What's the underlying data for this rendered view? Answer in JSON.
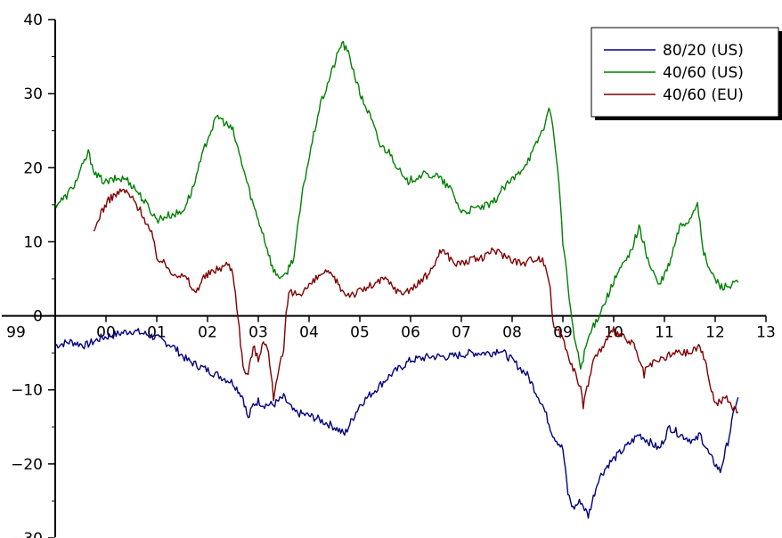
{
  "chart_data": {
    "type": "line",
    "title": "",
    "xlabel": "",
    "ylabel": "",
    "xlim": [
      1999,
      2013
    ],
    "ylim": [
      -30,
      40
    ],
    "grid": false,
    "legend_position": "top-right",
    "x_ticks": [
      {
        "x": 1999,
        "label": "99"
      },
      {
        "x": 2000,
        "label": "00"
      },
      {
        "x": 2001,
        "label": "01"
      },
      {
        "x": 2002,
        "label": "02"
      },
      {
        "x": 2003,
        "label": "03"
      },
      {
        "x": 2004,
        "label": "04"
      },
      {
        "x": 2005,
        "label": "05"
      },
      {
        "x": 2006,
        "label": "06"
      },
      {
        "x": 2007,
        "label": "07"
      },
      {
        "x": 2008,
        "label": "08"
      },
      {
        "x": 2009,
        "label": "09"
      },
      {
        "x": 2010,
        "label": "10"
      },
      {
        "x": 2011,
        "label": "11"
      },
      {
        "x": 2012,
        "label": "12"
      },
      {
        "x": 2013,
        "label": "13"
      }
    ],
    "y_ticks": [
      {
        "y": 40,
        "label": "40"
      },
      {
        "y": 30,
        "label": "30"
      },
      {
        "y": 20,
        "label": "20"
      },
      {
        "y": 10,
        "label": "10"
      },
      {
        "y": 0,
        "label": "0"
      },
      {
        "y": -10,
        "label": "−10"
      },
      {
        "y": -20,
        "label": "−20"
      },
      {
        "y": -30,
        "label": "−30"
      }
    ],
    "series": [
      {
        "name": "80/20 (US)",
        "color": "#000080",
        "x": [
          1999.0,
          1999.3,
          1999.6,
          1999.9,
          2000.2,
          2000.5,
          2000.8,
          2001.0,
          2001.3,
          2001.6,
          2001.9,
          2002.2,
          2002.5,
          2002.7,
          2002.8,
          2002.9,
          2003.0,
          2003.1,
          2003.3,
          2003.5,
          2003.7,
          2004.0,
          2004.2,
          2004.5,
          2004.7,
          2004.85,
          2005.0,
          2005.3,
          2005.6,
          2006.0,
          2006.4,
          2006.8,
          2007.2,
          2007.6,
          2007.75,
          2008.0,
          2008.3,
          2008.6,
          2008.8,
          2009.0,
          2009.1,
          2009.2,
          2009.35,
          2009.5,
          2009.7,
          2009.9,
          2010.2,
          2010.5,
          2010.7,
          2010.9,
          2011.1,
          2011.3,
          2011.6,
          2011.7,
          2011.9,
          2012.1,
          2012.25,
          2012.4,
          2012.45
        ],
        "values": [
          -4,
          -3.5,
          -4,
          -3,
          -2.5,
          -2,
          -2.5,
          -3,
          -4,
          -6,
          -7,
          -8,
          -9,
          -11,
          -14,
          -12,
          -11.5,
          -12,
          -12,
          -11,
          -13,
          -13.5,
          -14,
          -15,
          -16,
          -14,
          -12,
          -10,
          -8,
          -6,
          -5.5,
          -5.5,
          -5,
          -5,
          -4.5,
          -6,
          -8,
          -12,
          -16,
          -18,
          -24,
          -26,
          -25,
          -27,
          -22,
          -20,
          -18,
          -16,
          -17,
          -18,
          -15,
          -16,
          -17,
          -16,
          -19,
          -21,
          -17,
          -12,
          -11
        ]
      },
      {
        "name": "40/60 (US)",
        "color": "#008000",
        "x": [
          1999.0,
          1999.2,
          1999.4,
          1999.65,
          1999.8,
          2000.0,
          2000.2,
          2000.4,
          2000.6,
          2000.8,
          2001.0,
          2001.2,
          2001.5,
          2001.7,
          2002.0,
          2002.2,
          2002.35,
          2002.5,
          2002.7,
          2002.9,
          2003.1,
          2003.3,
          2003.5,
          2003.7,
          2003.9,
          2004.2,
          2004.5,
          2004.65,
          2004.8,
          2005.0,
          2005.2,
          2005.4,
          2005.6,
          2005.9,
          2006.2,
          2006.5,
          2006.8,
          2007.0,
          2007.3,
          2007.6,
          2007.8,
          2008.1,
          2008.4,
          2008.65,
          2008.75,
          2008.9,
          2009.0,
          2009.1,
          2009.2,
          2009.35,
          2009.5,
          2009.7,
          2009.9,
          2010.1,
          2010.3,
          2010.5,
          2010.7,
          2010.9,
          2011.1,
          2011.3,
          2011.5,
          2011.65,
          2011.75,
          2011.9,
          2012.1,
          2012.3,
          2012.45
        ],
        "values": [
          15,
          16,
          18,
          22,
          19,
          18,
          18.5,
          18.5,
          17,
          15,
          13,
          13.5,
          14,
          17,
          24,
          27,
          26,
          25,
          20,
          15,
          11,
          6,
          5,
          8,
          18,
          28,
          34,
          37,
          35,
          30,
          27,
          23,
          22,
          18,
          19,
          19,
          17,
          14,
          14.5,
          15,
          17,
          19,
          22,
          26,
          28,
          20,
          10,
          4,
          -2,
          -7,
          -3,
          0,
          3,
          6,
          8,
          12,
          7,
          4,
          7,
          12,
          13,
          15.5,
          9,
          6,
          4,
          4,
          4.5
        ]
      },
      {
        "name": "40/60 (EU)",
        "color": "#800000",
        "x": [
          1999.75,
          1999.9,
          2000.1,
          2000.35,
          2000.5,
          2000.7,
          2000.9,
          2001.0,
          2001.3,
          2001.6,
          2001.75,
          2001.9,
          2002.1,
          2002.4,
          2002.5,
          2002.6,
          2002.7,
          2002.8,
          2002.9,
          2003.0,
          2003.1,
          2003.2,
          2003.3,
          2003.4,
          2003.5,
          2003.55,
          2003.6,
          2003.8,
          2004.0,
          2004.3,
          2004.5,
          2004.7,
          2004.9,
          2005.2,
          2005.5,
          2005.8,
          2006.1,
          2006.4,
          2006.6,
          2006.9,
          2007.2,
          2007.5,
          2007.6,
          2007.9,
          2008.2,
          2008.5,
          2008.65,
          2008.75,
          2008.8,
          2008.9,
          2009.0,
          2009.2,
          2009.35,
          2009.4,
          2009.6,
          2009.8,
          2010.0,
          2010.2,
          2010.4,
          2010.6,
          2010.65,
          2010.9,
          2011.2,
          2011.5,
          2011.7,
          2011.75,
          2011.9,
          2012.0,
          2012.2,
          2012.3,
          2012.45
        ],
        "values": [
          11,
          14,
          16,
          17,
          16,
          14,
          11,
          8,
          6,
          5,
          3,
          5,
          6,
          7,
          6,
          0,
          -7,
          -8,
          -4,
          -6,
          -3,
          -5,
          -11,
          -7,
          -5,
          0,
          3,
          3,
          4,
          6,
          5,
          3,
          3,
          4,
          5,
          3,
          4,
          6,
          9,
          7,
          7.5,
          8,
          9,
          8,
          7,
          8,
          7,
          4,
          -1,
          -2,
          -3,
          -7,
          -10,
          -12,
          -6,
          -4,
          -2,
          -3,
          -4,
          -8,
          -7,
          -6,
          -5,
          -5,
          -4,
          -5,
          -9,
          -12,
          -11,
          -12,
          -13
        ]
      }
    ]
  }
}
